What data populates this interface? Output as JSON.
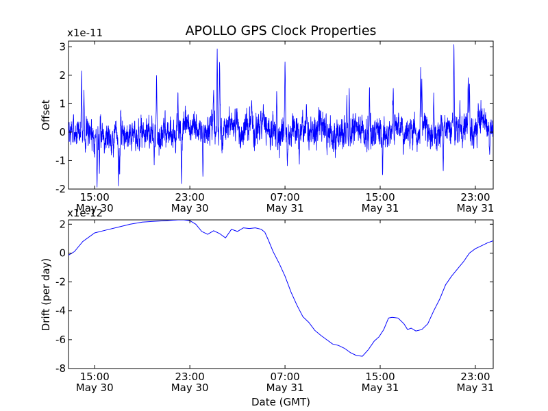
{
  "chart_data": {
    "title": "APOLLO GPS Clock Properties",
    "x_ticks": [
      {
        "hour": 15,
        "time": "15:00",
        "date": "May 30"
      },
      {
        "hour": 23,
        "time": "23:00",
        "date": "May 30"
      },
      {
        "hour": 31,
        "time": "07:00",
        "date": "May 31"
      },
      {
        "hour": 39,
        "time": "15:00",
        "date": "May 31"
      },
      {
        "hour": 47,
        "time": "23:00",
        "date": "May 31"
      }
    ],
    "xlim_hours_from_may30_0000": [
      12.8,
      48.5
    ],
    "xlabel": "Date (GMT)",
    "panels": [
      {
        "type": "line",
        "ylabel": "Offset",
        "scale_label": "x1e-11",
        "ylim": [
          -2,
          3.2
        ],
        "yticks": [
          -2,
          -1,
          0,
          1,
          2,
          3
        ],
        "color": "#0000ff",
        "noise": {
          "seed": 7,
          "samples": 3600,
          "sigma": 0.33
        },
        "spikes": [
          {
            "hour": 13.9,
            "value": 2.2
          },
          {
            "hour": 14.1,
            "value": 1.5
          },
          {
            "hour": 15.2,
            "value": -1.95
          },
          {
            "hour": 15.4,
            "value": -1.5
          },
          {
            "hour": 17.0,
            "value": -2.0
          },
          {
            "hour": 17.1,
            "value": -1.6
          },
          {
            "hour": 20.2,
            "value": 2.0
          },
          {
            "hour": 20.0,
            "value": -1.2
          },
          {
            "hour": 22.3,
            "value": -1.9
          },
          {
            "hour": 22.0,
            "value": 1.5
          },
          {
            "hour": 24.1,
            "value": -1.6
          },
          {
            "hour": 25.0,
            "value": 1.5
          },
          {
            "hour": 25.3,
            "value": 3.0
          },
          {
            "hour": 25.5,
            "value": 2.6
          },
          {
            "hour": 28.2,
            "value": 1.2
          },
          {
            "hour": 30.3,
            "value": 1.5
          },
          {
            "hour": 31.0,
            "value": 2.55
          },
          {
            "hour": 31.2,
            "value": -1.2
          },
          {
            "hour": 32.2,
            "value": -1.2
          },
          {
            "hour": 32.8,
            "value": 1.0
          },
          {
            "hour": 36.4,
            "value": 1.6
          },
          {
            "hour": 36.2,
            "value": 1.3
          },
          {
            "hour": 38.1,
            "value": 1.7
          },
          {
            "hour": 39.2,
            "value": -1.6
          },
          {
            "hour": 40.1,
            "value": 1.6
          },
          {
            "hour": 42.4,
            "value": 2.3
          },
          {
            "hour": 42.5,
            "value": 1.9
          },
          {
            "hour": 43.5,
            "value": 1.4
          },
          {
            "hour": 44.3,
            "value": -1.5
          },
          {
            "hour": 45.2,
            "value": 3.25
          },
          {
            "hour": 45.7,
            "value": 1.2
          },
          {
            "hour": 46.4,
            "value": 2.0
          },
          {
            "hour": 46.5,
            "value": 1.8
          },
          {
            "hour": 48.2,
            "value": -0.8
          }
        ]
      },
      {
        "type": "line",
        "ylabel": "Drift (per day)",
        "scale_label": "x1e-12",
        "ylim": [
          -8,
          2.3
        ],
        "yticks": [
          -8,
          -6,
          -4,
          -2,
          0,
          2
        ],
        "color": "#0000ff",
        "x": [
          12.8,
          13.3,
          14.0,
          15.0,
          16.0,
          17.0,
          18.0,
          19.0,
          20.0,
          21.0,
          22.0,
          22.5,
          23.0,
          23.5,
          24.0,
          24.5,
          25.0,
          25.5,
          26.0,
          26.5,
          27.0,
          27.5,
          28.0,
          28.5,
          29.0,
          29.3,
          29.6,
          30.0,
          30.5,
          31.0,
          31.5,
          32.0,
          32.5,
          33.0,
          33.5,
          34.0,
          34.5,
          35.0,
          35.5,
          36.0,
          36.5,
          37.0,
          37.5,
          38.0,
          38.5,
          38.9,
          39.3,
          39.7,
          40.0,
          40.5,
          41.0,
          41.3,
          41.6,
          42.0,
          42.5,
          43.0,
          43.5,
          44.0,
          44.5,
          45.0,
          45.5,
          46.0,
          46.5,
          47.0,
          47.5,
          48.0,
          48.5
        ],
        "y": [
          -0.15,
          0.1,
          0.8,
          1.4,
          1.6,
          1.8,
          2.0,
          2.15,
          2.2,
          2.25,
          2.3,
          2.3,
          2.25,
          2.0,
          1.5,
          1.3,
          1.55,
          1.35,
          1.05,
          1.65,
          1.5,
          1.75,
          1.7,
          1.75,
          1.65,
          1.45,
          0.9,
          0.1,
          -0.7,
          -1.6,
          -2.7,
          -3.6,
          -4.4,
          -4.8,
          -5.35,
          -5.7,
          -6.0,
          -6.3,
          -6.4,
          -6.6,
          -6.9,
          -7.1,
          -7.15,
          -6.7,
          -6.1,
          -5.8,
          -5.3,
          -4.5,
          -4.45,
          -4.5,
          -4.9,
          -5.3,
          -5.2,
          -5.4,
          -5.3,
          -4.9,
          -4.0,
          -3.2,
          -2.2,
          -1.6,
          -1.1,
          -0.6,
          0.0,
          0.3,
          0.5,
          0.7,
          0.85
        ]
      }
    ]
  }
}
